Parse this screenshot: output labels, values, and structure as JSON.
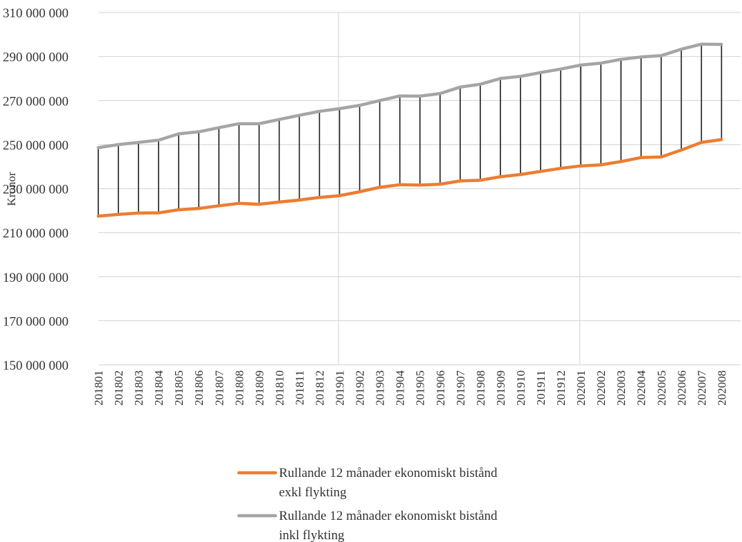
{
  "chart_data": {
    "type": "line",
    "title": "",
    "xlabel": "",
    "ylabel": "Kronor",
    "ylim": [
      150000000,
      310000000
    ],
    "y_ticks": [
      150000000,
      170000000,
      190000000,
      210000000,
      230000000,
      250000000,
      270000000,
      290000000,
      310000000
    ],
    "y_tick_labels": [
      "150 000 000",
      "170 000 000",
      "190 000 000",
      "210 000 000",
      "230 000 000",
      "250 000 000",
      "270 000 000",
      "290 000 000",
      "310 000 000"
    ],
    "categories": [
      "201801",
      "201802",
      "201803",
      "201804",
      "201805",
      "201806",
      "201807",
      "201808",
      "201809",
      "201810",
      "201811",
      "201812",
      "201901",
      "201902",
      "201903",
      "201904",
      "201905",
      "201906",
      "201907",
      "201908",
      "201909",
      "201910",
      "201911",
      "201912",
      "202001",
      "202002",
      "202003",
      "202004",
      "202005",
      "202006",
      "202007",
      "202008"
    ],
    "series": [
      {
        "name": "Rullande 12 månader ekonomiskt bistånd exkl flykting",
        "legend_lines": [
          "Rullande 12 månader ekonomiskt bistånd",
          "exkl flykting"
        ],
        "color": "#ED7D31",
        "values": [
          217500000,
          218300000,
          218900000,
          219000000,
          220400000,
          221000000,
          222200000,
          223300000,
          222900000,
          223900000,
          224800000,
          226000000,
          226800000,
          228600000,
          230600000,
          231800000,
          231600000,
          232000000,
          233500000,
          233800000,
          235400000,
          236400000,
          237800000,
          239200000,
          240300000,
          240800000,
          242300000,
          244100000,
          244400000,
          247500000,
          251000000,
          252300000
        ]
      },
      {
        "name": "Rullande 12 månader ekonomiskt bistånd inkl flykting",
        "legend_lines": [
          "Rullande 12 månader ekonomiskt bistånd",
          "inkl flykting"
        ],
        "color": "#A5A5A5",
        "values": [
          248600000,
          250000000,
          251000000,
          252000000,
          254900000,
          255800000,
          257700000,
          259500000,
          259500000,
          261400000,
          263300000,
          265100000,
          266300000,
          267800000,
          270000000,
          272100000,
          272000000,
          273200000,
          276100000,
          277400000,
          280000000,
          281000000,
          282700000,
          284300000,
          286100000,
          287000000,
          288700000,
          289800000,
          290400000,
          293300000,
          295600000,
          295500000
        ]
      }
    ],
    "high_low_lines": true,
    "grid": true,
    "legend_position": "bottom"
  }
}
